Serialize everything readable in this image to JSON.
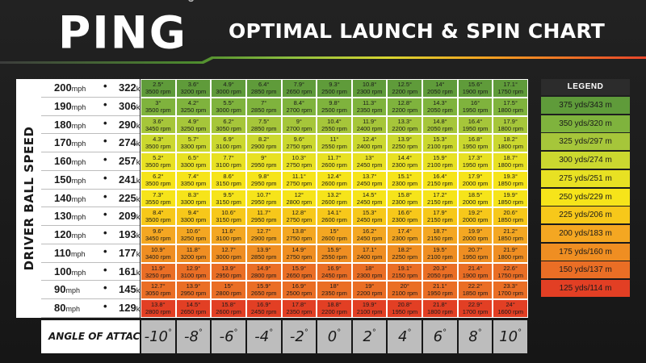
{
  "header": {
    "logo_text": "PING",
    "logo_mark": "®",
    "title": "OPTIMAL LAUNCH & SPIN CHART"
  },
  "colors": {
    "stripe": [
      "#4d8b2e",
      "#8dbf3f",
      "#c8d230",
      "#f0d020",
      "#f4a321",
      "#e8452a"
    ],
    "bands": [
      "#5f9b3a",
      "#7fb33d",
      "#a6c63a",
      "#cbd82f",
      "#e8e123",
      "#f6e41a",
      "#f7c81a",
      "#f4a722",
      "#ef8e22",
      "#ea6e25",
      "#e23f24"
    ]
  },
  "chart_data": {
    "type": "table",
    "title": "OPTIMAL LAUNCH & SPIN CHART",
    "row_axis_label": "DRIVER BALL SPEED",
    "col_axis_label": "ANGLE OF ATTACK",
    "columns": [
      "-10",
      "-8",
      "-6",
      "-4",
      "-2",
      "0",
      "2",
      "4",
      "6",
      "8",
      "10"
    ],
    "column_suffix": "°",
    "rows": [
      {
        "mph": "200",
        "kmh": "322",
        "cells": [
          [
            "2.5°",
            "3500 rpm"
          ],
          [
            "3.6°",
            "3200 rpm"
          ],
          [
            "4.9°",
            "3000 rpm"
          ],
          [
            "6.4°",
            "2850 rpm"
          ],
          [
            "7.9°",
            "2650 rpm"
          ],
          [
            "9.3°",
            "2500 rpm"
          ],
          [
            "10.8°",
            "2300 rpm"
          ],
          [
            "12.5°",
            "2200 rpm"
          ],
          [
            "14°",
            "2050 rpm"
          ],
          [
            "15.6°",
            "1900 rpm"
          ],
          [
            "17.1°",
            "1750 rpm"
          ]
        ],
        "bands": [
          0,
          0,
          0,
          0,
          0,
          0,
          0,
          0,
          0,
          0,
          0
        ]
      },
      {
        "mph": "190",
        "kmh": "306",
        "cells": [
          [
            "3°",
            "3500 rpm"
          ],
          [
            "4.2°",
            "3250 rpm"
          ],
          [
            "5.5°",
            "3000 rpm"
          ],
          [
            "7°",
            "2850 rpm"
          ],
          [
            "8.4°",
            "2700 rpm"
          ],
          [
            "9.8°",
            "2500 rpm"
          ],
          [
            "11.3°",
            "2350 rpm"
          ],
          [
            "12.8°",
            "2200 rpm"
          ],
          [
            "14.3°",
            "2050 rpm"
          ],
          [
            "16°",
            "1950 rpm"
          ],
          [
            "17.5°",
            "1800 rpm"
          ]
        ],
        "bands": [
          1,
          1,
          1,
          1,
          1,
          1,
          1,
          1,
          1,
          1,
          1
        ]
      },
      {
        "mph": "180",
        "kmh": "290",
        "cells": [
          [
            "3.6°",
            "3450 rpm"
          ],
          [
            "4.9°",
            "3250 rpm"
          ],
          [
            "6.2°",
            "3050 rpm"
          ],
          [
            "7.5°",
            "2850 rpm"
          ],
          [
            "9°",
            "2700 rpm"
          ],
          [
            "10.4°",
            "2550 rpm"
          ],
          [
            "11.9°",
            "2400 rpm"
          ],
          [
            "13.3°",
            "2200 rpm"
          ],
          [
            "14.8°",
            "2050 rpm"
          ],
          [
            "16.4°",
            "1950 rpm"
          ],
          [
            "17.9°",
            "1800 rpm"
          ]
        ],
        "bands": [
          2,
          2,
          2,
          2,
          2,
          2,
          2,
          2,
          2,
          2,
          2
        ]
      },
      {
        "mph": "170",
        "kmh": "274",
        "cells": [
          [
            "4.3°",
            "3500 rpm"
          ],
          [
            "5.7°",
            "3300 rpm"
          ],
          [
            "6.9°",
            "3100 rpm"
          ],
          [
            "8.2°",
            "2900 rpm"
          ],
          [
            "9.6°",
            "2750 rpm"
          ],
          [
            "11°",
            "2550 rpm"
          ],
          [
            "12.4°",
            "2400 rpm"
          ],
          [
            "13.9°",
            "2250 rpm"
          ],
          [
            "15.3°",
            "2100 rpm"
          ],
          [
            "16.8°",
            "1950 rpm"
          ],
          [
            "18.2°",
            "1800 rpm"
          ]
        ],
        "bands": [
          3,
          3,
          3,
          3,
          3,
          3,
          3,
          3,
          3,
          3,
          3
        ]
      },
      {
        "mph": "160",
        "kmh": "257",
        "cells": [
          [
            "5.2°",
            "3500 rpm"
          ],
          [
            "6.5°",
            "3300 rpm"
          ],
          [
            "7.7°",
            "3100 rpm"
          ],
          [
            "9°",
            "2950 rpm"
          ],
          [
            "10.3°",
            "2750 rpm"
          ],
          [
            "11.7°",
            "2600 rpm"
          ],
          [
            "13°",
            "2450 rpm"
          ],
          [
            "14.4°",
            "2300 rpm"
          ],
          [
            "15.9°",
            "2100 rpm"
          ],
          [
            "17.3°",
            "1950 rpm"
          ],
          [
            "18.7°",
            "1800 rpm"
          ]
        ],
        "bands": [
          4,
          4,
          4,
          4,
          4,
          4,
          4,
          4,
          4,
          4,
          4
        ]
      },
      {
        "mph": "150",
        "kmh": "241",
        "cells": [
          [
            "6.2°",
            "3500 rpm"
          ],
          [
            "7.4°",
            "3350 rpm"
          ],
          [
            "8.6°",
            "3150 rpm"
          ],
          [
            "9.8°",
            "2950 rpm"
          ],
          [
            "11.1°",
            "2750 rpm"
          ],
          [
            "12.4°",
            "2600 rpm"
          ],
          [
            "13.7°",
            "2450 rpm"
          ],
          [
            "15.1°",
            "2300 rpm"
          ],
          [
            "16.4°",
            "2150 rpm"
          ],
          [
            "17.9°",
            "2000 rpm"
          ],
          [
            "19.3°",
            "1850 rpm"
          ]
        ],
        "bands": [
          5,
          5,
          5,
          5,
          5,
          5,
          5,
          5,
          5,
          5,
          5
        ]
      },
      {
        "mph": "140",
        "kmh": "225",
        "cells": [
          [
            "7.3°",
            "3550 rpm"
          ],
          [
            "8.3°",
            "3300 rpm"
          ],
          [
            "9.5°",
            "3150 rpm"
          ],
          [
            "10.7°",
            "2950 rpm"
          ],
          [
            "12°",
            "2800 rpm"
          ],
          [
            "13.2°",
            "2600 rpm"
          ],
          [
            "14.5°",
            "2450 rpm"
          ],
          [
            "15.8°",
            "2300 rpm"
          ],
          [
            "17.2°",
            "2150 rpm"
          ],
          [
            "18.5°",
            "2000 rpm"
          ],
          [
            "19.9°",
            "1850 rpm"
          ]
        ],
        "bands": [
          5,
          5,
          5,
          5,
          5,
          5,
          5,
          5,
          5,
          5,
          5
        ]
      },
      {
        "mph": "130",
        "kmh": "209",
        "cells": [
          [
            "8.4°",
            "3500 rpm"
          ],
          [
            "9.4°",
            "3300 rpm"
          ],
          [
            "10.6°",
            "3150 rpm"
          ],
          [
            "11.7°",
            "2950 rpm"
          ],
          [
            "12.8°",
            "2750 rpm"
          ],
          [
            "14.1°",
            "2600 rpm"
          ],
          [
            "15.3°",
            "2450 rpm"
          ],
          [
            "16.6°",
            "2300 rpm"
          ],
          [
            "17.9°",
            "2150 rpm"
          ],
          [
            "19.2°",
            "2000 rpm"
          ],
          [
            "20.6°",
            "1850 rpm"
          ]
        ],
        "bands": [
          6,
          6,
          6,
          6,
          6,
          6,
          6,
          6,
          6,
          6,
          6
        ]
      },
      {
        "mph": "120",
        "kmh": "193",
        "cells": [
          [
            "9.6°",
            "3450 rpm"
          ],
          [
            "10.6°",
            "3250 rpm"
          ],
          [
            "11.6°",
            "3100 rpm"
          ],
          [
            "12.7°",
            "2900 rpm"
          ],
          [
            "13.8°",
            "2750 rpm"
          ],
          [
            "15°",
            "2600 rpm"
          ],
          [
            "16.2°",
            "2450 rpm"
          ],
          [
            "17.4°",
            "2300 rpm"
          ],
          [
            "18.7°",
            "2150 rpm"
          ],
          [
            "19.9°",
            "2000 rpm"
          ],
          [
            "21.2°",
            "1850 rpm"
          ]
        ],
        "bands": [
          7,
          7,
          7,
          7,
          7,
          7,
          7,
          7,
          7,
          7,
          7
        ]
      },
      {
        "mph": "110",
        "kmh": "177",
        "cells": [
          [
            "10.9°",
            "3400 rpm"
          ],
          [
            "11.8°",
            "3200 rpm"
          ],
          [
            "12.7°",
            "3000 rpm"
          ],
          [
            "13.9°",
            "2850 rpm"
          ],
          [
            "14.9°",
            "2750 rpm"
          ],
          [
            "15.9°",
            "2550 rpm"
          ],
          [
            "17.1°",
            "2400 rpm"
          ],
          [
            "18.2°",
            "2250 rpm"
          ],
          [
            "19.5°",
            "2100 rpm"
          ],
          [
            "20.7°",
            "1950 rpm"
          ],
          [
            "21.9°",
            "1800 rpm"
          ]
        ],
        "bands": [
          8,
          8,
          8,
          8,
          8,
          8,
          8,
          8,
          8,
          8,
          8
        ]
      },
      {
        "mph": "100",
        "kmh": "161",
        "cells": [
          [
            "11.9°",
            "3250 rpm"
          ],
          [
            "12.9°",
            "3100 rpm"
          ],
          [
            "13.9°",
            "2950 rpm"
          ],
          [
            "14.9°",
            "2800 rpm"
          ],
          [
            "15.9°",
            "2650 rpm"
          ],
          [
            "16.9°",
            "2450 rpm"
          ],
          [
            "18°",
            "2300 rpm"
          ],
          [
            "19.1°",
            "2150 rpm"
          ],
          [
            "20.3°",
            "2050 rpm"
          ],
          [
            "21.4°",
            "1900 rpm"
          ],
          [
            "22.6°",
            "1750 rpm"
          ]
        ],
        "bands": [
          9,
          9,
          9,
          9,
          9,
          9,
          9,
          9,
          9,
          9,
          9
        ]
      },
      {
        "mph": "90",
        "kmh": "145",
        "cells": [
          [
            "12.7°",
            "3050 rpm"
          ],
          [
            "13.9°",
            "2950 rpm"
          ],
          [
            "15°",
            "2800 rpm"
          ],
          [
            "15.9°",
            "2650 rpm"
          ],
          [
            "16.9°",
            "2500 rpm"
          ],
          [
            "18°",
            "2350 rpm"
          ],
          [
            "19°",
            "2200 rpm"
          ],
          [
            "20°",
            "2100 rpm"
          ],
          [
            "21.1°",
            "1950 rpm"
          ],
          [
            "22.2°",
            "1850 rpm"
          ],
          [
            "23.3°",
            "1700 rpm"
          ]
        ],
        "bands": [
          9,
          9,
          9,
          9,
          9,
          9,
          9,
          9,
          9,
          9,
          9
        ]
      },
      {
        "mph": "80",
        "kmh": "129",
        "cells": [
          [
            "13.8°",
            "2800 rpm"
          ],
          [
            "14.5°",
            "2650 rpm"
          ],
          [
            "15.8°",
            "2600 rpm"
          ],
          [
            "16.9°",
            "2450 rpm"
          ],
          [
            "17.8°",
            "2350 rpm"
          ],
          [
            "18.8°",
            "2200 rpm"
          ],
          [
            "19.9°",
            "2100 rpm"
          ],
          [
            "20.8°",
            "1950 rpm"
          ],
          [
            "21.8°",
            "1800 rpm"
          ],
          [
            "22.9°",
            "1700 rpm"
          ],
          [
            "24°",
            "1600 rpm"
          ]
        ],
        "bands": [
          10,
          10,
          10,
          10,
          10,
          10,
          10,
          10,
          10,
          10,
          10
        ]
      }
    ],
    "speed_units": {
      "mph": "mph",
      "kmh": "km/h",
      "separator": "•"
    },
    "legend": {
      "title": "LEGEND",
      "items": [
        "375 yds/343 m",
        "350 yds/320 m",
        "325 yds/297 m",
        "300 yds/274 m",
        "275 yds/251 m",
        "250 yds/229 m",
        "225 yds/206 m",
        "200 yds/183 m",
        "175 yds/160 m",
        "150 yds/137 m",
        "125 yds/114 m"
      ],
      "placement": "right"
    }
  },
  "aoa_label": "ANGLE OF ATTACK",
  "vertical_label": "DRIVER BALL SPEED"
}
